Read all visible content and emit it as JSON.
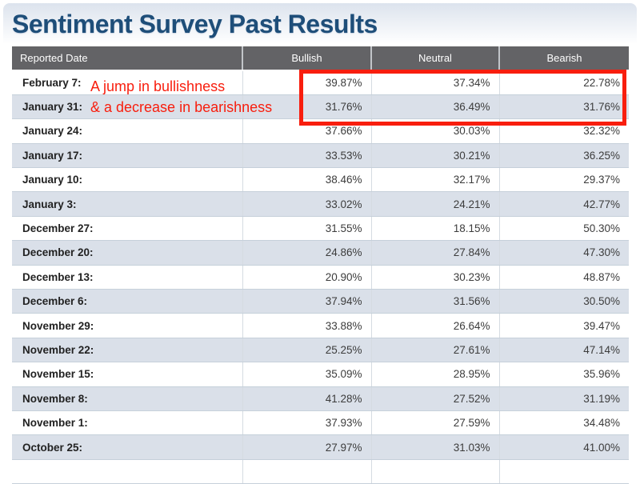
{
  "page": {
    "title": "Sentiment Survey Past Results"
  },
  "colors": {
    "highlight_red": "#f81e0e",
    "title_blue": "#1e4e79",
    "header_bg": "#636366",
    "row_alt": "#dae0e9"
  },
  "annotation": {
    "line1": "A jump in bullishness",
    "line2": "& a decrease in bearishness"
  },
  "table": {
    "columns": [
      "Reported Date",
      "Bullish",
      "Neutral",
      "Bearish"
    ],
    "rows": [
      {
        "date": "February 7:",
        "bullish": "39.87%",
        "neutral": "37.34%",
        "bearish": "22.78%"
      },
      {
        "date": "January 31:",
        "bullish": "31.76%",
        "neutral": "36.49%",
        "bearish": "31.76%"
      },
      {
        "date": "January 24:",
        "bullish": "37.66%",
        "neutral": "30.03%",
        "bearish": "32.32%"
      },
      {
        "date": "January 17:",
        "bullish": "33.53%",
        "neutral": "30.21%",
        "bearish": "36.25%"
      },
      {
        "date": "January 10:",
        "bullish": "38.46%",
        "neutral": "32.17%",
        "bearish": "29.37%"
      },
      {
        "date": "January 3:",
        "bullish": "33.02%",
        "neutral": "24.21%",
        "bearish": "42.77%"
      },
      {
        "date": "December 27:",
        "bullish": "31.55%",
        "neutral": "18.15%",
        "bearish": "50.30%"
      },
      {
        "date": "December 20:",
        "bullish": "24.86%",
        "neutral": "27.84%",
        "bearish": "47.30%"
      },
      {
        "date": "December 13:",
        "bullish": "20.90%",
        "neutral": "30.23%",
        "bearish": "48.87%"
      },
      {
        "date": "December 6:",
        "bullish": "37.94%",
        "neutral": "31.56%",
        "bearish": "30.50%"
      },
      {
        "date": "November 29:",
        "bullish": "33.88%",
        "neutral": "26.64%",
        "bearish": "39.47%"
      },
      {
        "date": "November 22:",
        "bullish": "25.25%",
        "neutral": "27.61%",
        "bearish": "47.14%"
      },
      {
        "date": "November 15:",
        "bullish": "35.09%",
        "neutral": "28.95%",
        "bearish": "35.96%"
      },
      {
        "date": "November 8:",
        "bullish": "41.28%",
        "neutral": "27.52%",
        "bearish": "31.19%"
      },
      {
        "date": "November 1:",
        "bullish": "37.93%",
        "neutral": "27.59%",
        "bearish": "34.48%"
      },
      {
        "date": "October 25:",
        "bullish": "27.97%",
        "neutral": "31.03%",
        "bearish": "41.00%"
      }
    ]
  },
  "chart_data": {
    "type": "table",
    "title": "Sentiment Survey Past Results",
    "columns": [
      "Reported Date",
      "Bullish",
      "Neutral",
      "Bearish"
    ],
    "categories": [
      "February 7",
      "January 31",
      "January 24",
      "January 17",
      "January 10",
      "January 3",
      "December 27",
      "December 20",
      "December 13",
      "December 6",
      "November 29",
      "November 22",
      "November 15",
      "November 8",
      "November 1",
      "October 25"
    ],
    "series": [
      {
        "name": "Bullish",
        "values": [
          39.87,
          31.76,
          37.66,
          33.53,
          38.46,
          33.02,
          31.55,
          24.86,
          20.9,
          37.94,
          33.88,
          25.25,
          35.09,
          41.28,
          37.93,
          27.97
        ]
      },
      {
        "name": "Neutral",
        "values": [
          37.34,
          36.49,
          30.03,
          30.21,
          32.17,
          24.21,
          18.15,
          27.84,
          30.23,
          31.56,
          26.64,
          27.61,
          28.95,
          27.52,
          27.59,
          31.03
        ]
      },
      {
        "name": "Bearish",
        "values": [
          22.78,
          31.76,
          32.32,
          36.25,
          29.37,
          42.77,
          50.3,
          47.3,
          48.87,
          30.5,
          39.47,
          47.14,
          35.96,
          31.19,
          34.48,
          41.0
        ]
      }
    ],
    "annotation_text": "A jump in bullishness & a decrease in bearishness",
    "highlighted_rows": [
      "February 7",
      "January 31"
    ]
  }
}
